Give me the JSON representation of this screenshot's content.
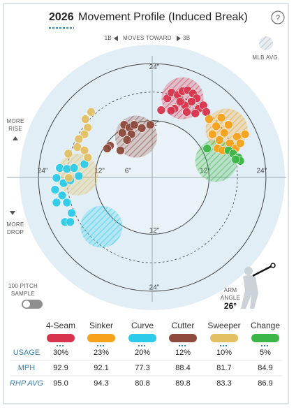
{
  "chart_data": {
    "type": "scatter",
    "season": "2026",
    "title": "Movement Profile (Induced Break)",
    "direction": {
      "left": "1B",
      "middle": "MOVES TOWARD",
      "right": "3B"
    },
    "legend_avg": "MLB AVG.",
    "more_rise": [
      "MORE",
      "RISE"
    ],
    "more_drop": [
      "MORE",
      "DROP"
    ],
    "sample_toggle": [
      "100 PITCH",
      "SAMPLE"
    ],
    "arm_angle_label": [
      "ARM",
      "ANGLE"
    ],
    "arm_angle": {
      "value": 26,
      "label": "26°"
    },
    "xlim": [
      -28,
      28
    ],
    "ylim": [
      -28,
      28
    ],
    "rings": [
      6,
      12,
      18,
      24
    ],
    "xticks": [
      {
        "value": -24,
        "label": "24\""
      },
      {
        "value": -12,
        "label": "12\""
      },
      {
        "value": -6,
        "label": "6\""
      },
      {
        "value": 12,
        "label": "12\""
      },
      {
        "value": 24,
        "label": "24\""
      }
    ],
    "yticks": [
      {
        "value": 24,
        "label": "24\""
      },
      {
        "value": 12,
        "label": "12\""
      },
      {
        "value": -12,
        "label": "12\""
      },
      {
        "value": -24,
        "label": "24\""
      }
    ],
    "row_labels": [
      "USAGE",
      "MPH",
      "RHP AVG"
    ],
    "series": [
      {
        "name": "4-Seam",
        "color": "#d9344d",
        "usage": 30,
        "usage_label": "30%",
        "mph": 92.9,
        "rhp_avg": 95.0,
        "rhp_avg_label": "95.0",
        "avg": [
          6.4,
          16.7
        ],
        "x": [
          3.2,
          4.1,
          5.4,
          6.4,
          7.5,
          8.6,
          9.4,
          8.3,
          6.9,
          5.9,
          4.7,
          7.3,
          9.8,
          10.8,
          1.9,
          4.0,
          11.4,
          9.1
        ],
        "y": [
          16.7,
          17.9,
          17.4,
          18.2,
          18.4,
          17.7,
          16.7,
          16.0,
          15.2,
          16.0,
          14.5,
          13.8,
          14.5,
          15.2,
          14.2,
          14.1,
          13.8,
          13.5
        ]
      },
      {
        "name": "Sinker",
        "color": "#f7a21b",
        "usage": 23,
        "usage_label": "23%",
        "mph": 92.1,
        "rhp_avg": 94.3,
        "avg": [
          15.7,
          10.1
        ],
        "x": [
          12.0,
          13.5,
          14.6,
          15.2,
          12.7,
          14.2,
          16.4,
          17.9,
          19.6,
          16.1,
          17.6,
          13.8,
          14.9,
          18.6
        ],
        "y": [
          12.3,
          10.8,
          12.6,
          9.4,
          9.1,
          7.9,
          7.2,
          8.6,
          9.1,
          11.1,
          6.1,
          6.1,
          5.7,
          7.2
        ]
      },
      {
        "name": "Curve",
        "color": "#2ccbea",
        "usage": 20,
        "usage_label": "20%",
        "mph": 77.3,
        "rhp_avg": 80.8,
        "avg": [
          -10.7,
          -10.4
        ],
        "x": [
          -19.5,
          -18.0,
          -16.5,
          -14.3,
          -20.2,
          -18.7,
          -17.3,
          -15.5,
          -20.5,
          -19.0,
          -20.2,
          -18.0,
          -17.0,
          -18.4,
          -17.3
        ],
        "y": [
          2.0,
          1.8,
          2.0,
          2.8,
          -0.1,
          -1.2,
          -0.6,
          0.3,
          -2.6,
          -3.8,
          -5.3,
          -5.3,
          -7.5,
          -9.4,
          -9.4
        ]
      },
      {
        "name": "Cutter",
        "color": "#8e4a3d",
        "usage": 12,
        "usage_label": "12%",
        "mph": 88.4,
        "rhp_avg": 89.8,
        "avg": [
          -3.4,
          8.6
        ],
        "x": [
          -5.9,
          -4.8,
          -3.8,
          -2.2,
          -0.4,
          -6.3,
          -4.4,
          -5.3,
          -6.7,
          -8.9,
          -9.5
        ],
        "y": [
          11.1,
          10.5,
          11.1,
          10.4,
          11.1,
          9.4,
          9.1,
          7.9,
          5.7,
          6.7,
          6.1
        ]
      },
      {
        "name": "Sweeper",
        "color": "#e3c064",
        "usage": 10,
        "usage_label": "10%",
        "mph": 81.7,
        "rhp_avg": 83.3,
        "avg": [
          -15.8,
          0.6
        ],
        "x": [
          -12.9,
          -14.1,
          -13.6,
          -14.3,
          -15.5,
          -15.8,
          -17.7,
          -14.3,
          -13.6,
          -17.6
        ],
        "y": [
          13.8,
          12.3,
          10.5,
          9.1,
          8.1,
          6.4,
          5.0,
          5.7,
          4.2,
          -0.1
        ]
      },
      {
        "name": "Change",
        "color": "#3db648",
        "usage": 5,
        "usage_label": "5%",
        "mph": 84.9,
        "rhp_avg": 86.9,
        "avg": [
          13.5,
          3.5
        ],
        "x": [
          16.1,
          17.1,
          18.2,
          18.6,
          17.6,
          11.6
        ],
        "y": [
          5.7,
          5.0,
          4.2,
          3.5,
          3.8,
          6.1
        ]
      }
    ]
  }
}
